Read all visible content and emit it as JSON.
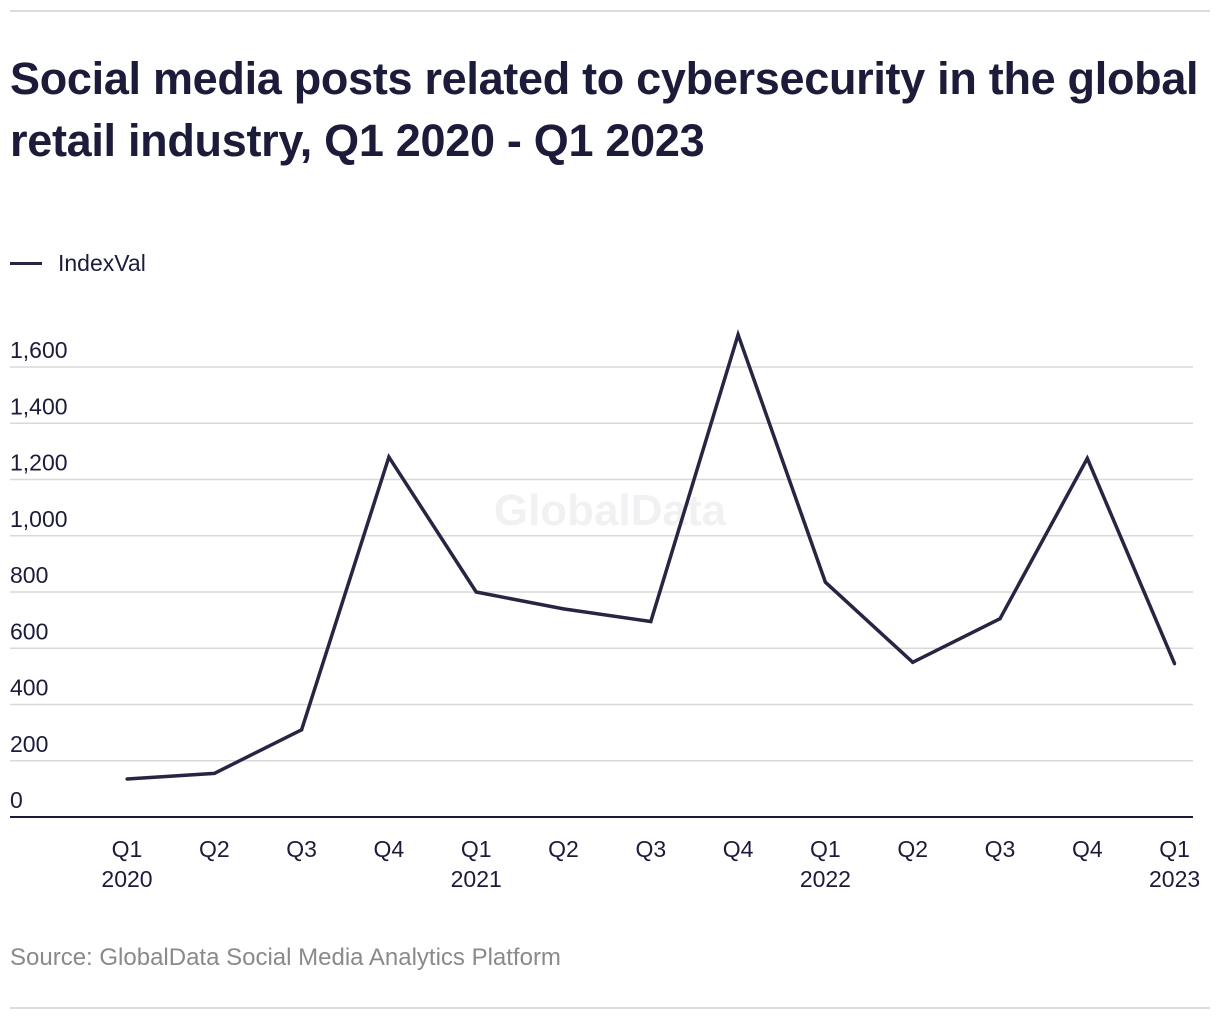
{
  "title": "Social media posts related to cybersecurity in the global retail industry, Q1 2020 - Q1 2023",
  "watermark": "GlobalData",
  "source": "Source: GlobalData Social Media Analytics Platform",
  "colors": {
    "line": "#262643",
    "grid": "#d9d9d9",
    "axis": "#1c1c3a",
    "text": "#1c1c3a",
    "source": "#8a8a8a"
  },
  "chart_data": {
    "type": "line",
    "title": "Social media posts related to cybersecurity in the global retail industry, Q1 2020 - Q1 2023",
    "xlabel": "",
    "ylabel": "",
    "legend": "top-left",
    "grid": true,
    "ylim": [
      0,
      1600
    ],
    "yticks": [
      0,
      200,
      400,
      600,
      800,
      1000,
      1200,
      1400,
      1600
    ],
    "ytick_labels": [
      "0",
      "200",
      "400",
      "600",
      "800",
      "1,000",
      "1,200",
      "1,400",
      "1,600"
    ],
    "categories": [
      {
        "quarter": "Q1",
        "year": "2020"
      },
      {
        "quarter": "Q2",
        "year": ""
      },
      {
        "quarter": "Q3",
        "year": ""
      },
      {
        "quarter": "Q4",
        "year": ""
      },
      {
        "quarter": "Q1",
        "year": "2021"
      },
      {
        "quarter": "Q2",
        "year": ""
      },
      {
        "quarter": "Q3",
        "year": ""
      },
      {
        "quarter": "Q4",
        "year": ""
      },
      {
        "quarter": "Q1",
        "year": "2022"
      },
      {
        "quarter": "Q2",
        "year": ""
      },
      {
        "quarter": "Q3",
        "year": ""
      },
      {
        "quarter": "Q4",
        "year": ""
      },
      {
        "quarter": "Q1",
        "year": "2023"
      }
    ],
    "series": [
      {
        "name": "IndexVal",
        "values": [
          135,
          155,
          310,
          1280,
          800,
          740,
          695,
          1715,
          835,
          550,
          705,
          1275,
          545
        ]
      }
    ]
  }
}
